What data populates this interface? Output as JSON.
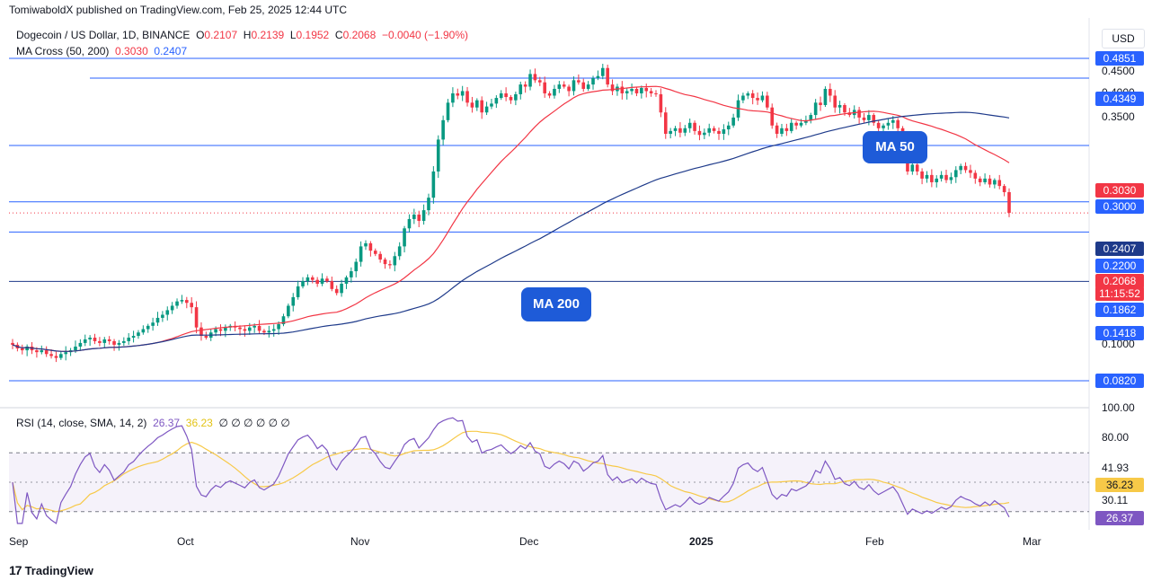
{
  "header": {
    "published": "TomiwaboldX published on TradingView.com, Feb 25, 2025 12:44 UTC"
  },
  "legend": {
    "symbol": "Dogecoin / US Dollar, 1D, BINANCE",
    "o_key": "O",
    "o_val": "0.2107",
    "h_key": "H",
    "h_val": "0.2139",
    "l_key": "L",
    "l_val": "0.1952",
    "c_key": "C",
    "c_val": "0.2068",
    "change": "−0.0040 (−1.90%)",
    "ma_label": "MA Cross (50, 200)",
    "ma50_val": "0.3030",
    "ma200_val": "0.2407",
    "rsi_label": "RSI (14, close, SMA, 14, 2)",
    "rsi_val": "26.37",
    "rsi_sma_val": "36.23",
    "rsi_extra": "∅ ∅ ∅ ∅ ∅ ∅"
  },
  "currency": "USD",
  "annotations": {
    "ma50": "MA 50",
    "ma200": "MA 200"
  },
  "price_axis": {
    "plain_labels": [
      "0.4500",
      "0.4000",
      "0.3500",
      "0.1000"
    ],
    "tags": [
      {
        "text": "0.4851",
        "color": "#2962ff"
      },
      {
        "text": "0.4349",
        "color": "#2962ff"
      },
      {
        "text": "0.3030",
        "color": "#f23645"
      },
      {
        "text": "0.3000",
        "color": "#2962ff"
      },
      {
        "text": "0.2407",
        "color": "#1e3a8a"
      },
      {
        "text": "0.2200",
        "color": "#2962ff"
      },
      {
        "text": "0.2068",
        "color": "#f23645"
      },
      {
        "text": "11:15:52",
        "color": "#f23645"
      },
      {
        "text": "0.1862",
        "color": "#2962ff"
      },
      {
        "text": "0.1418",
        "color": "#2962ff"
      },
      {
        "text": "0.0820",
        "color": "#2962ff"
      }
    ]
  },
  "rsi_axis": {
    "plain_labels": [
      "100.00",
      "80.00",
      "41.93",
      "30.11"
    ],
    "tags": [
      {
        "text": "36.23",
        "color": "#f7c948",
        "fg": "#131722"
      },
      {
        "text": "26.37",
        "color": "#7e57c2",
        "fg": "#ffffff"
      }
    ]
  },
  "time_axis": [
    "Sep",
    "Oct",
    "Nov",
    "Dec",
    "2025",
    "Feb",
    "Mar"
  ],
  "branding": {
    "logo": "TradingView"
  },
  "chart_data": {
    "type": "candlestick",
    "symbol": "DOGEUSD",
    "interval": "1D",
    "ylim": [
      0.06,
      0.5
    ],
    "horizontal_levels": [
      0.4851,
      0.4349,
      0.3,
      0.22,
      0.1862,
      0.1418,
      0.082
    ],
    "current_price": 0.2068,
    "candles_close": [
      0.1,
      0.098,
      0.097,
      0.099,
      0.097,
      0.096,
      0.097,
      0.095,
      0.094,
      0.093,
      0.095,
      0.096,
      0.097,
      0.099,
      0.101,
      0.103,
      0.104,
      0.102,
      0.101,
      0.103,
      0.102,
      0.1,
      0.101,
      0.102,
      0.104,
      0.105,
      0.107,
      0.109,
      0.111,
      0.113,
      0.116,
      0.118,
      0.121,
      0.124,
      0.127,
      0.128,
      0.126,
      0.123,
      0.11,
      0.105,
      0.104,
      0.107,
      0.109,
      0.108,
      0.11,
      0.111,
      0.11,
      0.109,
      0.108,
      0.11,
      0.111,
      0.108,
      0.107,
      0.108,
      0.109,
      0.112,
      0.117,
      0.124,
      0.13,
      0.138,
      0.142,
      0.145,
      0.143,
      0.14,
      0.144,
      0.142,
      0.136,
      0.133,
      0.14,
      0.145,
      0.15,
      0.158,
      0.172,
      0.175,
      0.168,
      0.165,
      0.16,
      0.156,
      0.155,
      0.163,
      0.172,
      0.19,
      0.2,
      0.205,
      0.198,
      0.21,
      0.225,
      0.26,
      0.31,
      0.345,
      0.38,
      0.4,
      0.395,
      0.405,
      0.38,
      0.37,
      0.385,
      0.36,
      0.372,
      0.378,
      0.39,
      0.4,
      0.392,
      0.385,
      0.398,
      0.42,
      0.415,
      0.445,
      0.43,
      0.425,
      0.4,
      0.395,
      0.41,
      0.42,
      0.415,
      0.405,
      0.43,
      0.425,
      0.41,
      0.42,
      0.435,
      0.44,
      0.46,
      0.42,
      0.405,
      0.415,
      0.4,
      0.405,
      0.41,
      0.4,
      0.412,
      0.405,
      0.4,
      0.398,
      0.36,
      0.32,
      0.325,
      0.33,
      0.322,
      0.33,
      0.34,
      0.325,
      0.318,
      0.322,
      0.33,
      0.325,
      0.32,
      0.328,
      0.335,
      0.35,
      0.385,
      0.395,
      0.4,
      0.39,
      0.385,
      0.395,
      0.37,
      0.335,
      0.32,
      0.33,
      0.325,
      0.34,
      0.335,
      0.34,
      0.345,
      0.355,
      0.38,
      0.375,
      0.41,
      0.395,
      0.37,
      0.375,
      0.36,
      0.355,
      0.365,
      0.35,
      0.345,
      0.355,
      0.34,
      0.33,
      0.335,
      0.34,
      0.345,
      0.33,
      0.3,
      0.26,
      0.27,
      0.26,
      0.25,
      0.255,
      0.245,
      0.25,
      0.255,
      0.248,
      0.252,
      0.262,
      0.268,
      0.262,
      0.258,
      0.25,
      0.245,
      0.25,
      0.242,
      0.248,
      0.24,
      0.232,
      0.207
    ],
    "ma50_label_value": 0.303,
    "ma200_label_value": 0.2407,
    "rsi": {
      "rsi": 26.37,
      "rsi_sma": 36.23,
      "upper_band": 70,
      "lower_band": 30,
      "ylim": [
        20,
        100
      ]
    },
    "x_ticks": [
      "Sep",
      "Oct",
      "Nov",
      "Dec",
      "2025",
      "Feb",
      "Mar"
    ]
  }
}
